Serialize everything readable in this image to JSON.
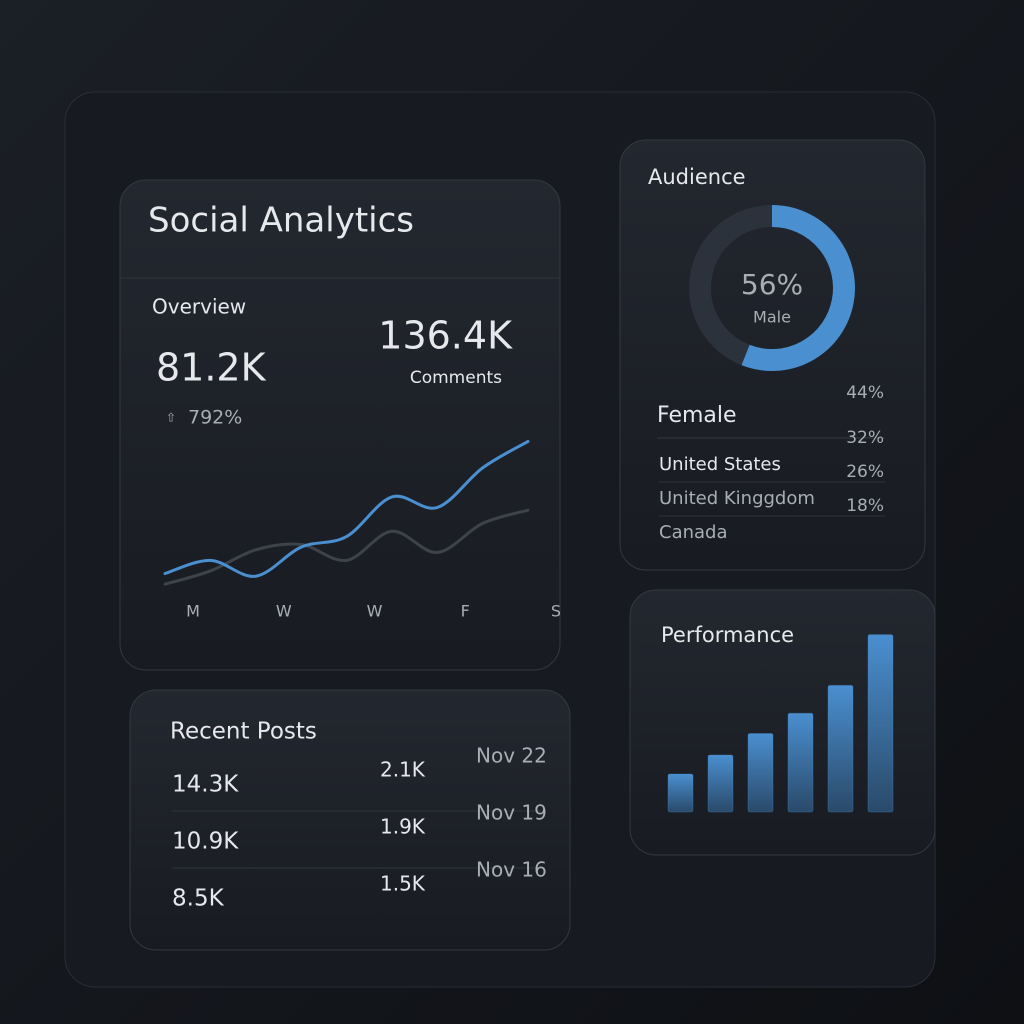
{
  "title": "Social Analytics",
  "overview": {
    "label": "Overview",
    "metric": "81.2K",
    "change": "792%",
    "metric2": "136.4K",
    "metric2_label": "Comments"
  },
  "chart_data": [
    {
      "type": "line",
      "categories": [
        "M",
        null,
        "W",
        null,
        "W",
        null,
        "F",
        null,
        "S"
      ],
      "series": [
        {
          "color": "#4a8fd0",
          "values": [
            20,
            30,
            18,
            40,
            48,
            78,
            70,
            100,
            120
          ]
        },
        {
          "color": "#3d424b",
          "values": [
            12,
            22,
            38,
            42,
            30,
            52,
            36,
            58,
            68
          ]
        }
      ],
      "ylim": [
        0,
        140
      ]
    },
    {
      "type": "donut",
      "title": "Audience",
      "labels": [
        "Male",
        "Female"
      ],
      "values": [
        56,
        44
      ],
      "value_labels": [
        "56%",
        "44%"
      ],
      "colors": [
        "#4a8fd0",
        "#2c323b"
      ]
    },
    {
      "type": "bar",
      "title": "Performance",
      "values": [
        30,
        45,
        62,
        78,
        100,
        140
      ],
      "color": "#4a8fd0",
      "ylim": [
        0,
        150
      ]
    }
  ],
  "countries": [
    {
      "name": "United States",
      "share": "32%"
    },
    {
      "name": "United Kinggdom",
      "share": "26%"
    },
    {
      "name": "Canada",
      "share": "18%"
    }
  ],
  "recent_posts": {
    "title": "Recent Posts",
    "rows": [
      [
        "14.3K",
        "2.1K",
        "Nov 22"
      ],
      [
        "10.9K",
        "1.9K",
        "Nov 19"
      ],
      [
        "8.5K",
        "1.5K",
        "Nov 16"
      ]
    ]
  }
}
